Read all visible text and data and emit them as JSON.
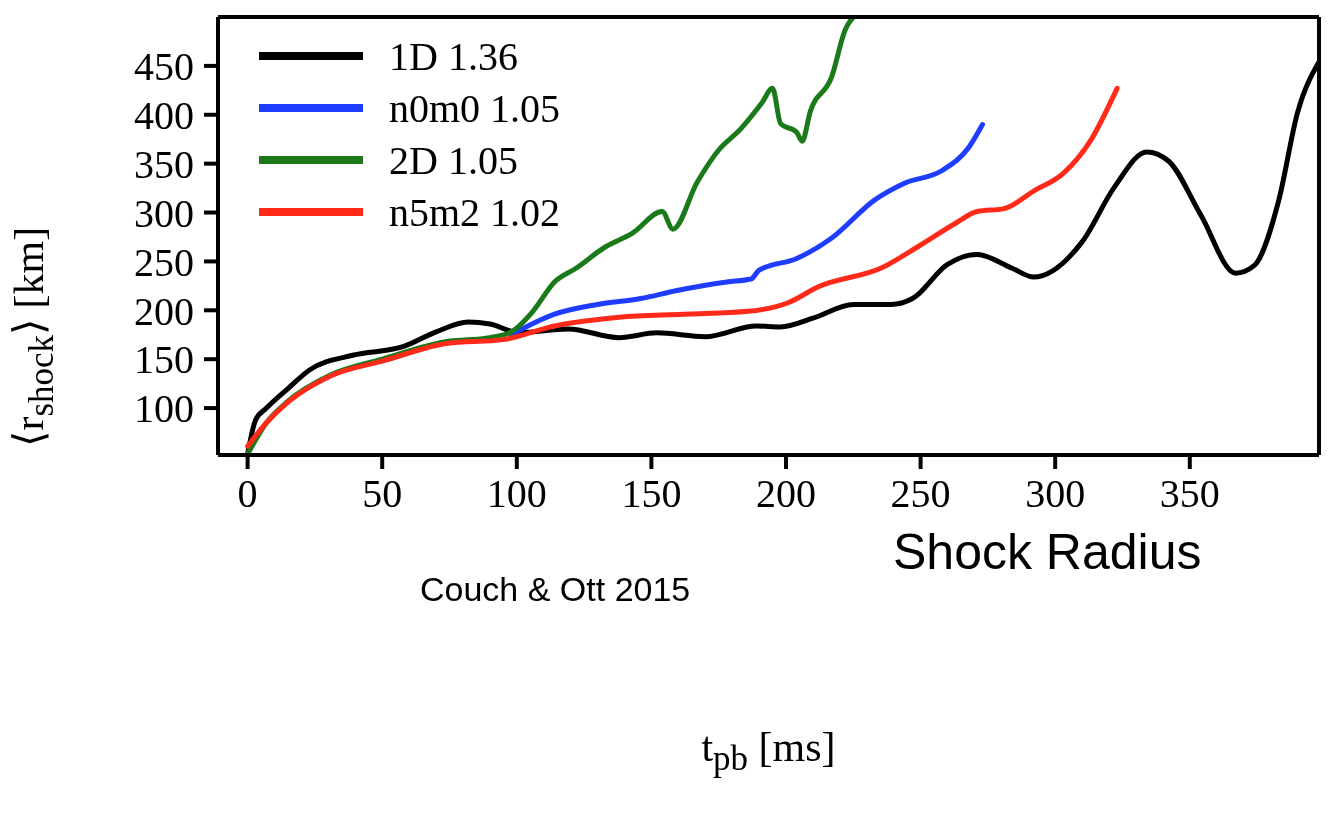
{
  "chart_data": {
    "type": "line",
    "xlabel": "t$_{pb}$ [ms]",
    "ylabel": "⟨r$_{shock}$⟩ [km]",
    "xlim": [
      -11,
      398
    ],
    "ylim": [
      52,
      500
    ],
    "xticks": [
      0,
      50,
      100,
      150,
      200,
      250,
      300,
      350
    ],
    "yticks": [
      100,
      150,
      200,
      250,
      300,
      350,
      400,
      450
    ],
    "legend": "top left",
    "marker": "none",
    "line_style": "solid",
    "annotations": [
      "Couch & Ott 2015",
      "Shock Radius"
    ],
    "series": [
      {
        "name": "1D 1.36",
        "color": "#000000",
        "x": [
          0,
          3,
          7,
          15,
          23,
          39,
          58,
          70,
          82,
          90,
          101,
          119,
          138,
          152,
          170,
          189,
          198,
          210,
          225,
          239,
          247,
          260,
          271,
          284,
          292,
          310,
          322,
          334,
          342,
          354,
          367,
          374,
          383,
          390,
          398
        ],
        "values": [
          53,
          88,
          100,
          120,
          139,
          154,
          163,
          178,
          188,
          186,
          177,
          181,
          172,
          177,
          173,
          184,
          183,
          192,
          206,
          206,
          212,
          247,
          257,
          243,
          234,
          270,
          326,
          362,
          353,
          298,
          238,
          246,
          312,
          402,
          454
        ]
      },
      {
        "name": "n0m0 1.05",
        "color": "#1f3dff",
        "x": [
          98,
          114,
          130,
          146,
          159,
          178,
          187,
          190,
          204,
          217,
          233,
          244,
          258,
          268,
          273
        ],
        "values": [
          175,
          196,
          206,
          212,
          220,
          229,
          232,
          241,
          253,
          274,
          313,
          330,
          343,
          367,
          390
        ]
      },
      {
        "name": "2D 1.05",
        "color": "#1a7a1a",
        "x": [
          0,
          7,
          15,
          31,
          50,
          74,
          90,
          98,
          106,
          114,
          122,
          133,
          143,
          154,
          158,
          167,
          175,
          183,
          191,
          195,
          198,
          204,
          206,
          209,
          217,
          222,
          225
        ],
        "values": [
          53,
          85,
          107,
          134,
          150,
          168,
          172,
          178,
          199,
          229,
          243,
          265,
          279,
          301,
          283,
          331,
          364,
          385,
          412,
          427,
          391,
          382,
          373,
          403,
          439,
          487,
          500
        ]
      },
      {
        "name": "n5m2 1.02",
        "color": "#ff2a1a",
        "x": [
          0,
          7,
          15,
          31,
          50,
          74,
          95,
          114,
          138,
          162,
          186,
          201,
          212,
          236,
          249,
          263,
          271,
          281,
          292,
          303,
          313,
          323
        ],
        "values": [
          61,
          85,
          106,
          133,
          148,
          166,
          170,
          184,
          193,
          196,
          199,
          208,
          224,
          244,
          265,
          289,
          301,
          304,
          322,
          340,
          373,
          427
        ]
      }
    ]
  }
}
